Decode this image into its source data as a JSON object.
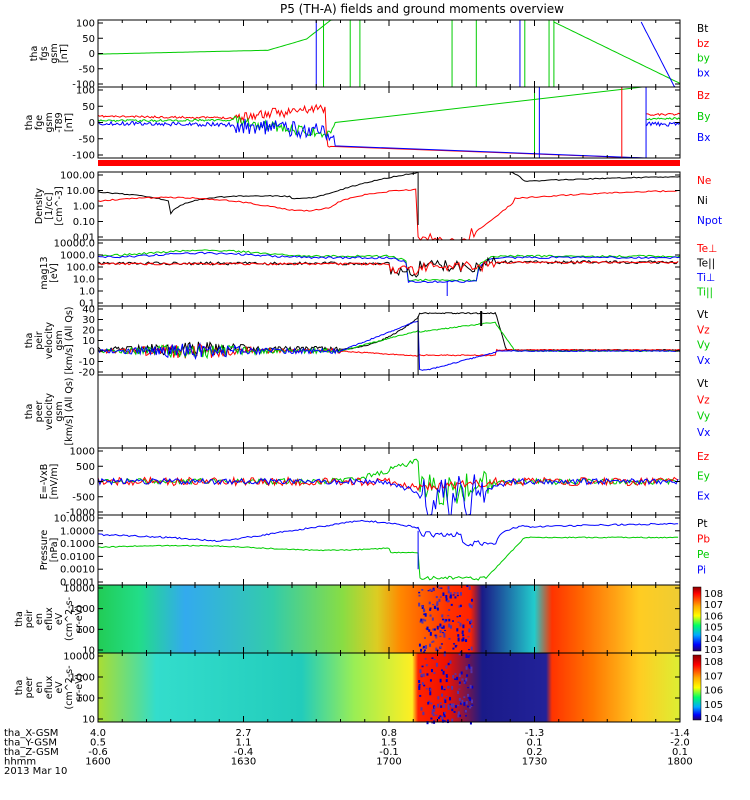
{
  "chart_data": {
    "title": "P5 (TH-A) fields and ground moments overview",
    "x_time_ticks": [
      "1600",
      "1630",
      "1700",
      "1730",
      "1800"
    ],
    "panels": [
      {
        "id": "fgs",
        "type": "line",
        "ylabel": [
          "tha",
          "fgs",
          "gsm",
          "[nT]"
        ],
        "yticks": [
          "100",
          "50",
          "0",
          "-50",
          "-100"
        ],
        "ylim": [
          -100,
          100
        ],
        "legend": [
          {
            "label": "Bt",
            "color": "#000000"
          },
          {
            "label": "bz",
            "color": "#ff0000"
          },
          {
            "label": "by",
            "color": "#00cc00"
          },
          {
            "label": "bx",
            "color": "#0000ff"
          }
        ]
      },
      {
        "id": "fge",
        "type": "line",
        "ylabel": [
          "tha",
          "fge",
          "gsm",
          "-T89",
          "[nT]"
        ],
        "yticks": [
          "100",
          "50",
          "0",
          "-50",
          "-100"
        ],
        "ylim": [
          -120,
          120
        ],
        "legend": [
          {
            "label": "Bz",
            "color": "#ff0000"
          },
          {
            "label": "By",
            "color": "#00cc00"
          },
          {
            "label": "Bx",
            "color": "#0000ff"
          }
        ]
      },
      {
        "id": "density",
        "type": "line",
        "ylabel": [
          "Density",
          "[1/cc]",
          "[cm^-3]"
        ],
        "yticks": [
          "100.00",
          "10.00",
          "1.00",
          "0.10",
          "0.01"
        ],
        "scale": "log",
        "legend": [
          {
            "label": "Ne",
            "color": "#ff0000"
          },
          {
            "label": "Ni",
            "color": "#000000"
          },
          {
            "label": "Npot",
            "color": "#0000ff"
          }
        ]
      },
      {
        "id": "temp",
        "type": "line",
        "ylabel": [
          "mag13",
          "[eV]"
        ],
        "yticks": [
          "10000.0",
          "1000.0",
          "100.0",
          "10.0",
          "1.0",
          "0.1"
        ],
        "scale": "log",
        "legend": [
          {
            "label": "Te⊥",
            "color": "#ff0000"
          },
          {
            "label": "Te||",
            "color": "#000000"
          },
          {
            "label": "Ti⊥",
            "color": "#0000ff"
          },
          {
            "label": "Ti||",
            "color": "#00cc00"
          }
        ]
      },
      {
        "id": "peir_vel",
        "type": "line",
        "ylabel": [
          "tha",
          "peir",
          "velocity",
          "gsm",
          "[km/s] (All Qs)"
        ],
        "yticks": [
          "40",
          "30",
          "20",
          "10",
          "0",
          "-10",
          "-20"
        ],
        "ylim": [
          -20,
          40
        ],
        "legend": [
          {
            "label": "Vt",
            "color": "#000000"
          },
          {
            "label": "Vz",
            "color": "#ff0000"
          },
          {
            "label": "Vy",
            "color": "#00cc00"
          },
          {
            "label": "Vx",
            "color": "#0000ff"
          }
        ]
      },
      {
        "id": "peer_vel",
        "type": "line",
        "ylabel": [
          "tha",
          "peer",
          "velocity",
          "gsm",
          "[km/s] (All Qs)"
        ],
        "yticks": [],
        "legend": [
          {
            "label": "Vt",
            "color": "#000000"
          },
          {
            "label": "Vz",
            "color": "#ff0000"
          },
          {
            "label": "Vy",
            "color": "#00cc00"
          },
          {
            "label": "Vx",
            "color": "#0000ff"
          }
        ]
      },
      {
        "id": "efield",
        "type": "line",
        "ylabel": [
          "E=-VxB",
          "[mV/m]"
        ],
        "yticks": [
          "1000",
          "500",
          "0",
          "-500",
          "-1000"
        ],
        "ylim": [
          -1000,
          1000
        ],
        "legend": [
          {
            "label": "Ez",
            "color": "#ff0000"
          },
          {
            "label": "Ey",
            "color": "#00cc00"
          },
          {
            "label": "Ex",
            "color": "#0000ff"
          }
        ]
      },
      {
        "id": "pressure",
        "type": "line",
        "ylabel": [
          "Pressure",
          "[nPa]"
        ],
        "yticks": [
          "10.0000",
          "1.0000",
          "0.1000",
          "0.0100",
          "0.0010",
          "0.0001"
        ],
        "scale": "log",
        "legend": [
          {
            "label": "Pt",
            "color": "#000000"
          },
          {
            "label": "Pb",
            "color": "#ff0000"
          },
          {
            "label": "Pe",
            "color": "#00cc00"
          },
          {
            "label": "Pi",
            "color": "#0000ff"
          }
        ]
      },
      {
        "id": "peir_spec",
        "type": "heatmap",
        "ylabel": [
          "tha",
          "peir",
          "en",
          "eflux",
          "eV",
          "(cm^2-s-",
          "sr-eV)"
        ],
        "yticks": [
          "10000",
          "1000",
          "100",
          "10"
        ],
        "colorbar": [
          "10^8",
          "10^7",
          "10^6",
          "10^5",
          "10^4",
          "10^3"
        ]
      },
      {
        "id": "peer_spec",
        "type": "heatmap",
        "ylabel": [
          "tha",
          "peer",
          "en",
          "eflux",
          "eV",
          "(cm^2-s-",
          "sr-eV)"
        ],
        "yticks": [
          "10000",
          "1000",
          "100",
          "10"
        ],
        "colorbar": [
          "10^8",
          "10^7",
          "10^6",
          "10^5",
          "10^4"
        ]
      }
    ],
    "footer": {
      "rows": [
        {
          "label": "tha_X-GSM",
          "values": [
            "4.0",
            "2.7",
            "0.8",
            "-1.3",
            "-1.4"
          ]
        },
        {
          "label": "tha_Y-GSM",
          "values": [
            "0.5",
            "1.1",
            "1.5",
            "0.1",
            "-2.0"
          ]
        },
        {
          "label": "tha_Z-GSM",
          "values": [
            "-0.6",
            "-0.4",
            "-0.1",
            "0.2",
            "0.1"
          ]
        },
        {
          "label": "hhmm",
          "values": [
            "1600",
            "1630",
            "1700",
            "1730",
            "1800"
          ]
        }
      ],
      "date": "2013 Mar 10"
    }
  }
}
